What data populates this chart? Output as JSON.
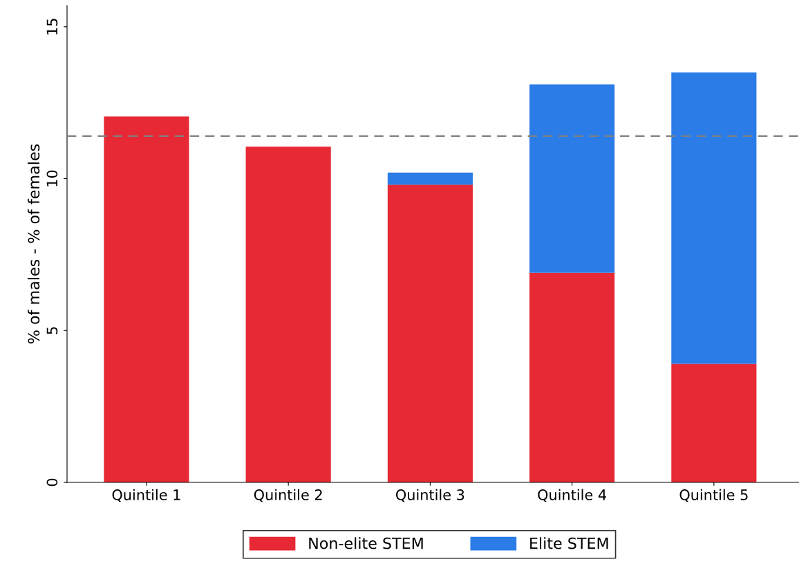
{
  "chart_data": {
    "type": "bar",
    "stacked": true,
    "ylabel": "% of males - % of females",
    "categories": [
      "Quintile 1",
      "Quintile 2",
      "Quintile 3",
      "Quintile 4",
      "Quintile 5"
    ],
    "series": [
      {
        "name": "Non-elite STEM",
        "color": "#e62935",
        "values": [
          12.05,
          11.05,
          9.8,
          6.9,
          3.9
        ]
      },
      {
        "name": "Elite STEM",
        "color": "#2b7ce6",
        "values": [
          0,
          0,
          0.4,
          6.2,
          9.6
        ]
      }
    ],
    "ylim": [
      0,
      15.7
    ],
    "yticks": [
      0,
      5,
      10,
      15
    ],
    "grid": false,
    "legend": "bottom",
    "ref_lines": [
      {
        "axis": "y",
        "value": 11.4,
        "color": "#808080",
        "line_style": "dashed"
      }
    ]
  }
}
